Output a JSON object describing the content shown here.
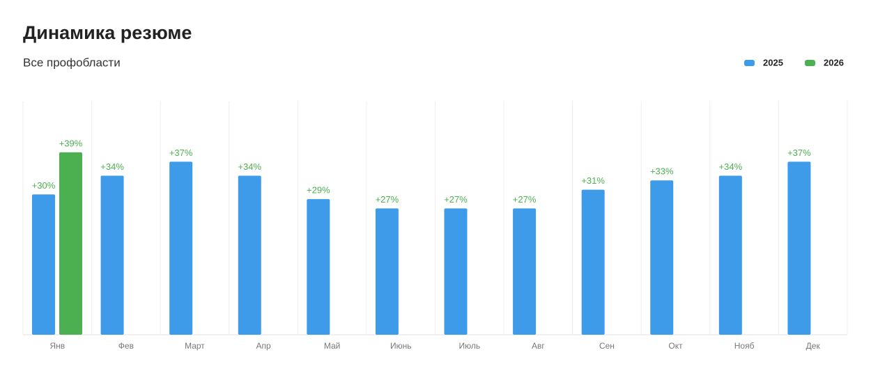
{
  "chart_data": {
    "type": "bar",
    "title": "Динамика резюме",
    "subtitle": "Все профобласти",
    "categories": [
      "Янв",
      "Фев",
      "Март",
      "Апр",
      "Май",
      "Июнь",
      "Июль",
      "Авг",
      "Сен",
      "Окт",
      "Нояб",
      "Дек"
    ],
    "series": [
      {
        "name": "2025",
        "color": "#3d9be9",
        "values": [
          30,
          34,
          37,
          34,
          29,
          27,
          27,
          27,
          31,
          33,
          34,
          37
        ],
        "value_labels": [
          "+30%",
          "+34%",
          "+37%",
          "+34%",
          "+29%",
          "+27%",
          "+27%",
          "+27%",
          "+31%",
          "+33%",
          "+34%",
          "+37%"
        ]
      },
      {
        "name": "2026",
        "color": "#4cb050",
        "values": [
          39,
          null,
          null,
          null,
          null,
          null,
          null,
          null,
          null,
          null,
          null,
          null
        ],
        "value_labels": [
          "+39%",
          null,
          null,
          null,
          null,
          null,
          null,
          null,
          null,
          null,
          null,
          null
        ]
      }
    ],
    "ylim": [
      0,
      50
    ],
    "legend": "top-right",
    "label_color": "#4cb050"
  }
}
